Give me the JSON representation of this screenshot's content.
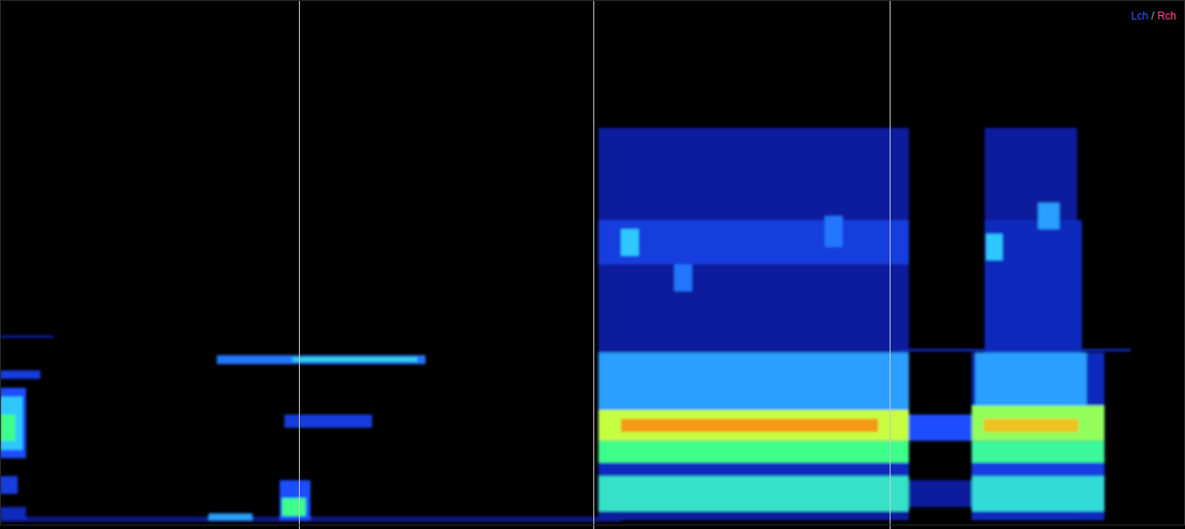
{
  "chart_data": {
    "type": "heatmap",
    "tick_labels": false,
    "grid": false,
    "legend": "top-right",
    "legend_separator": "/",
    "series": [
      {
        "name": "Lch",
        "color": "#3553ef"
      },
      {
        "name": "Rch",
        "color": "#ff4690"
      }
    ],
    "xlim": [
      0,
      100
    ],
    "ylim": [
      0,
      100
    ],
    "color_range": [
      0,
      1
    ],
    "vlines": [
      25.2,
      50.1,
      75.1
    ],
    "cells": [
      {
        "x0": 0,
        "x1": 52.4,
        "y0": 0.7,
        "y1": 1.7,
        "value": 0.3
      },
      {
        "x0": 0,
        "x1": 2.2,
        "y0": 12.8,
        "y1": 26.2,
        "value": 0.5
      },
      {
        "x0": 0,
        "x1": 1.9,
        "y0": 14.4,
        "y1": 24.5,
        "value": 0.65
      },
      {
        "x0": 0,
        "x1": 1.3,
        "y0": 16.1,
        "y1": 21.1,
        "value": 0.8
      },
      {
        "x0": 0,
        "x1": 1.5,
        "y0": 6.0,
        "y1": 9.4,
        "value": 0.45
      },
      {
        "x0": 0,
        "x1": 2.2,
        "y0": 1.0,
        "y1": 3.5,
        "value": 0.4
      },
      {
        "x0": 0,
        "x1": 4.5,
        "y0": 35.7,
        "y1": 36.2,
        "value": 0.35
      },
      {
        "x0": 0,
        "x1": 3.4,
        "y0": 27.9,
        "y1": 29.5,
        "value": 0.45
      },
      {
        "x0": 18.3,
        "x1": 35.9,
        "y0": 30.7,
        "y1": 32.4,
        "value": 0.55
      },
      {
        "x0": 24.7,
        "x1": 35.2,
        "y0": 31.2,
        "y1": 32.0,
        "value": 0.7
      },
      {
        "x0": 24.0,
        "x1": 31.4,
        "y0": 18.6,
        "y1": 21.1,
        "value": 0.45
      },
      {
        "x0": 23.6,
        "x1": 26.2,
        "y0": 1.0,
        "y1": 8.6,
        "value": 0.5
      },
      {
        "x0": 23.8,
        "x1": 25.8,
        "y0": 1.8,
        "y1": 5.2,
        "value": 0.8
      },
      {
        "x0": 17.6,
        "x1": 21.3,
        "y0": 1.0,
        "y1": 2.3,
        "value": 0.6
      },
      {
        "x0": 50.5,
        "x1": 76.7,
        "y0": 1.0,
        "y1": 75.7,
        "value": 0.35
      },
      {
        "x0": 50.5,
        "x1": 76.7,
        "y0": 49.7,
        "y1": 58.1,
        "value": 0.45
      },
      {
        "x0": 52.4,
        "x1": 53.9,
        "y0": 51.3,
        "y1": 56.4,
        "value": 0.65
      },
      {
        "x0": 56.9,
        "x1": 58.4,
        "y0": 44.6,
        "y1": 49.7,
        "value": 0.55
      },
      {
        "x0": 69.6,
        "x1": 71.1,
        "y0": 53.0,
        "y1": 58.9,
        "value": 0.55
      },
      {
        "x0": 50.5,
        "x1": 76.7,
        "y0": 22.0,
        "y1": 32.9,
        "value": 0.6
      },
      {
        "x0": 50.5,
        "x1": 76.7,
        "y0": 16.1,
        "y1": 22.0,
        "value": 0.88
      },
      {
        "x0": 52.4,
        "x1": 74.1,
        "y0": 17.8,
        "y1": 20.3,
        "value": 0.95
      },
      {
        "x0": 50.5,
        "x1": 76.7,
        "y0": 11.9,
        "y1": 16.1,
        "value": 0.8
      },
      {
        "x0": 50.5,
        "x1": 76.7,
        "y0": 9.4,
        "y1": 11.9,
        "value": 0.4
      },
      {
        "x0": 50.5,
        "x1": 76.7,
        "y0": 2.7,
        "y1": 9.4,
        "value": 0.72
      },
      {
        "x0": 76.0,
        "x1": 95.4,
        "y0": 33.1,
        "y1": 33.6,
        "value": 0.4
      },
      {
        "x0": 76.7,
        "x1": 82.0,
        "y0": 16.1,
        "y1": 21.1,
        "value": 0.5
      },
      {
        "x0": 76.7,
        "x1": 82.0,
        "y0": 3.5,
        "y1": 8.6,
        "value": 0.35
      },
      {
        "x0": 83.1,
        "x1": 90.9,
        "y0": 1.0,
        "y1": 75.7,
        "value": 0.35
      },
      {
        "x0": 82.0,
        "x1": 93.2,
        "y0": 1.0,
        "y1": 32.9,
        "value": 0.4
      },
      {
        "x0": 83.1,
        "x1": 91.3,
        "y0": 32.9,
        "y1": 58.1,
        "value": 0.4
      },
      {
        "x0": 83.2,
        "x1": 84.6,
        "y0": 50.5,
        "y1": 55.5,
        "value": 0.65
      },
      {
        "x0": 87.6,
        "x1": 89.4,
        "y0": 56.4,
        "y1": 61.4,
        "value": 0.6
      },
      {
        "x0": 82.3,
        "x1": 91.7,
        "y0": 22.8,
        "y1": 32.9,
        "value": 0.6
      },
      {
        "x0": 82.0,
        "x1": 93.2,
        "y0": 16.1,
        "y1": 22.8,
        "value": 0.85
      },
      {
        "x0": 83.0,
        "x1": 91.0,
        "y0": 17.8,
        "y1": 20.3,
        "value": 0.93
      },
      {
        "x0": 82.0,
        "x1": 93.2,
        "y0": 11.9,
        "y1": 16.1,
        "value": 0.78
      },
      {
        "x0": 82.0,
        "x1": 93.2,
        "y0": 9.4,
        "y1": 11.9,
        "value": 0.45
      },
      {
        "x0": 82.0,
        "x1": 93.2,
        "y0": 2.7,
        "y1": 9.4,
        "value": 0.7
      }
    ]
  }
}
